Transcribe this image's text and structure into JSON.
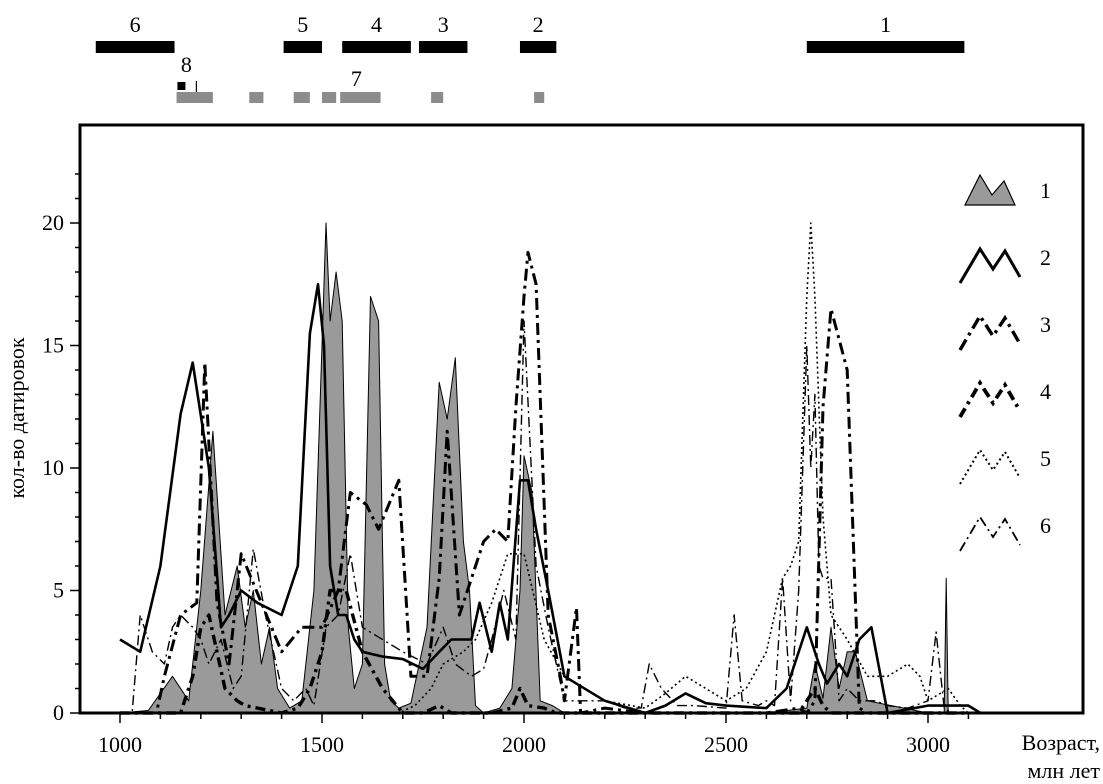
{
  "chart_data": {
    "type": "area",
    "ylabel": "кол-во датировок",
    "xlabel_line1": "Возраст,",
    "xlabel_line2": "млн лет",
    "xlim": [
      910,
      3130
    ],
    "ylim": [
      0,
      24
    ],
    "x_ticks": [
      1000,
      1500,
      2000,
      2500,
      3000
    ],
    "y_ticks": [
      0,
      5,
      10,
      15,
      20
    ],
    "periods": [
      {
        "label": "6",
        "start": 940,
        "end": 1135
      },
      {
        "label": "5",
        "start": 1405,
        "end": 1500
      },
      {
        "label": "4",
        "start": 1550,
        "end": 1720
      },
      {
        "label": "3",
        "start": 1740,
        "end": 1860
      },
      {
        "label": "2",
        "start": 1990,
        "end": 2080
      },
      {
        "label": "1",
        "start": 2700,
        "end": 3090
      }
    ],
    "marker8": {
      "label": "8",
      "x": 1152
    },
    "marker7": {
      "label": "7",
      "bars": [
        [
          1140,
          1230
        ],
        [
          1320,
          1355
        ],
        [
          1430,
          1470
        ],
        [
          1500,
          1535
        ],
        [
          1545,
          1645
        ],
        [
          1770,
          1800
        ],
        [
          2025,
          2050
        ]
      ]
    },
    "legend": [
      "1",
      "2",
      "3",
      "4",
      "5",
      "6"
    ],
    "series": [
      {
        "name": "1",
        "style": "filled",
        "x": [
          1000,
          1070,
          1130,
          1170,
          1200,
          1230,
          1260,
          1290,
          1310,
          1330,
          1350,
          1370,
          1390,
          1420,
          1450,
          1480,
          1500,
          1510,
          1520,
          1535,
          1550,
          1565,
          1580,
          1600,
          1620,
          1640,
          1655,
          1670,
          1690,
          1720,
          1760,
          1790,
          1810,
          1830,
          1850,
          1865,
          1880,
          1900,
          1940,
          1970,
          1990,
          2000,
          2020,
          2040,
          2070,
          2100,
          2600,
          2700,
          2720,
          2740,
          2760,
          2780,
          2800,
          2820,
          2850,
          3000,
          3040,
          3045,
          3050
        ],
        "y": [
          0,
          0.1,
          1.5,
          0.5,
          5,
          11.5,
          4,
          6,
          3.5,
          5,
          2,
          3.5,
          1,
          0.2,
          0.5,
          5,
          15,
          20,
          16,
          18,
          16,
          3.5,
          1,
          2,
          17,
          16,
          2,
          0.5,
          0.2,
          0.4,
          3.5,
          13.5,
          12,
          14.5,
          7,
          5,
          0.3,
          0,
          0.2,
          1,
          5,
          10.5,
          9,
          0.5,
          0.3,
          0,
          0,
          0.2,
          2,
          0.6,
          3.5,
          1,
          2.5,
          2.5,
          0.5,
          0,
          0,
          5.5,
          0
        ]
      },
      {
        "name": "2",
        "style": "solid",
        "x": [
          1000,
          1050,
          1100,
          1150,
          1180,
          1220,
          1250,
          1270,
          1300,
          1340,
          1400,
          1440,
          1470,
          1490,
          1505,
          1520,
          1540,
          1560,
          1580,
          1600,
          1650,
          1700,
          1750,
          1790,
          1820,
          1850,
          1870,
          1890,
          1920,
          1940,
          1960,
          1990,
          2010,
          2030,
          2060,
          2100,
          2200,
          2300,
          2350,
          2400,
          2450,
          2500,
          2600,
          2650,
          2700,
          2730,
          2750,
          2780,
          2800,
          2830,
          2860,
          2900,
          3000,
          3100,
          3130
        ],
        "y": [
          3,
          2.5,
          6,
          12.2,
          14.3,
          10,
          3.5,
          4,
          5,
          4.5,
          4,
          6,
          15.5,
          17.5,
          15,
          6,
          4,
          4,
          3,
          2.5,
          2.3,
          2.2,
          1.8,
          2.5,
          3,
          3,
          3,
          4.5,
          2.5,
          4.5,
          3,
          9.5,
          9.5,
          7.5,
          5,
          1.5,
          0.5,
          0,
          0.3,
          0.8,
          0.4,
          0.3,
          0.2,
          1,
          3.5,
          2,
          1.2,
          2,
          1.5,
          3,
          3.5,
          0,
          0.3,
          0.3,
          0
        ]
      },
      {
        "name": "3",
        "style": "dashdot",
        "x": [
          1000,
          1070,
          1090,
          1110,
          1150,
          1190,
          1210,
          1240,
          1270,
          1300,
          1400,
          1450,
          1500,
          1540,
          1570,
          1610,
          1640,
          1690,
          1720,
          1760,
          1790,
          1810,
          1840,
          1870,
          1900,
          1930,
          1960,
          1980,
          2000,
          2010,
          2030,
          2060,
          2090,
          2100,
          2130,
          2140,
          2200,
          2300,
          2400,
          2500,
          2600,
          2680,
          2700,
          2720,
          2740,
          2760,
          2800,
          2830,
          2850,
          2900,
          3000,
          3100
        ],
        "y": [
          0,
          0,
          0,
          1.5,
          4,
          4.5,
          14.3,
          4.5,
          2,
          6.5,
          2.5,
          3.5,
          3.5,
          5,
          9,
          8.5,
          7.5,
          9.5,
          1.5,
          1.5,
          5.5,
          11.5,
          4,
          5.5,
          7,
          7.5,
          7,
          12.5,
          17,
          18.8,
          17.5,
          4,
          1.5,
          0.5,
          4.3,
          0,
          0.2,
          0,
          0,
          0,
          0,
          0.2,
          0,
          0.5,
          12.5,
          16.5,
          14,
          0.2,
          0,
          0,
          0,
          0
        ]
      },
      {
        "name": "4",
        "style": "dashdot-heavy",
        "x": [
          1000,
          1100,
          1150,
          1180,
          1200,
          1220,
          1260,
          1290,
          1310,
          1340,
          1370,
          1400,
          1440,
          1470,
          1500,
          1520,
          1560,
          1600,
          1650,
          1700,
          1750,
          1790,
          1820,
          1850,
          1890,
          1920,
          1970,
          1990,
          2010,
          2050,
          2080,
          2100,
          2200,
          2300,
          2500,
          2680,
          2700,
          2720,
          2740,
          2760,
          2800,
          3100
        ],
        "y": [
          0,
          0,
          0,
          1.5,
          3.5,
          4,
          1,
          0.5,
          0.3,
          0.2,
          0.1,
          0,
          0.2,
          1,
          2.5,
          5,
          5,
          2.5,
          1,
          0,
          0,
          0.3,
          0,
          0,
          0,
          0,
          0.2,
          1,
          0.3,
          0.2,
          0,
          0,
          0,
          0,
          0,
          0,
          0.5,
          1,
          0.3,
          0,
          0,
          0
        ]
      },
      {
        "name": "5",
        "style": "dotted",
        "x": [
          1500,
          1600,
          1650,
          1690,
          1730,
          1770,
          1800,
          1850,
          1880,
          1920,
          1960,
          2000,
          2050,
          2100,
          2200,
          2300,
          2350,
          2400,
          2450,
          2500,
          2550,
          2600,
          2640,
          2660,
          2680,
          2700,
          2710,
          2720,
          2730,
          2740,
          2760,
          2780,
          2800,
          2850,
          2900,
          2950,
          2980,
          3000,
          3050,
          3080,
          3100
        ],
        "y": [
          0,
          0,
          0,
          0,
          0.3,
          1,
          2,
          2.5,
          3,
          4.5,
          6.5,
          6.5,
          3,
          1.5,
          0.5,
          0.2,
          0.8,
          1.5,
          1,
          0.5,
          1,
          2.5,
          5.5,
          6,
          7,
          17,
          20,
          17,
          12.5,
          8,
          4,
          3.5,
          3,
          1.5,
          1.5,
          2,
          1.5,
          0.5,
          1,
          0.3,
          0
        ]
      },
      {
        "name": "6",
        "style": "dashed-dot",
        "x": [
          1000,
          1030,
          1050,
          1080,
          1110,
          1130,
          1150,
          1180,
          1200,
          1220,
          1250,
          1280,
          1300,
          1330,
          1360,
          1400,
          1430,
          1460,
          1480,
          1510,
          1540,
          1570,
          1600,
          1650,
          1700,
          1760,
          1800,
          1830,
          1870,
          1900,
          1920,
          1950,
          1980,
          2000,
          2030,
          2060,
          2100,
          2200,
          2250,
          2290,
          2310,
          2340,
          2380,
          2420,
          2500,
          2520,
          2540,
          2580,
          2600,
          2620,
          2640,
          2660,
          2680,
          2700,
          2710,
          2720,
          2730,
          2740,
          2760,
          2780,
          2800,
          2830,
          2870,
          2900,
          2950,
          3000,
          3020,
          3040,
          3060
        ],
        "y": [
          0,
          0,
          4,
          2.5,
          2,
          3.5,
          4,
          3.5,
          3,
          2,
          3,
          1,
          1.5,
          6.7,
          4,
          1,
          0.5,
          1,
          0.3,
          3.5,
          4,
          6.5,
          3.5,
          3,
          2.5,
          2,
          3.5,
          2,
          1.5,
          1.8,
          3,
          5,
          3,
          16,
          6,
          3.5,
          0.5,
          0.5,
          0.2,
          0.2,
          2,
          1,
          0.3,
          0.3,
          0.2,
          4,
          0.5,
          0.3,
          0.5,
          0.3,
          5.5,
          0.5,
          5,
          15,
          10,
          13,
          6,
          5.5,
          5.5,
          0.5,
          1,
          0.5,
          0.5,
          0.3,
          0.2,
          0.5,
          3.3,
          0.2,
          0
        ]
      }
    ]
  }
}
